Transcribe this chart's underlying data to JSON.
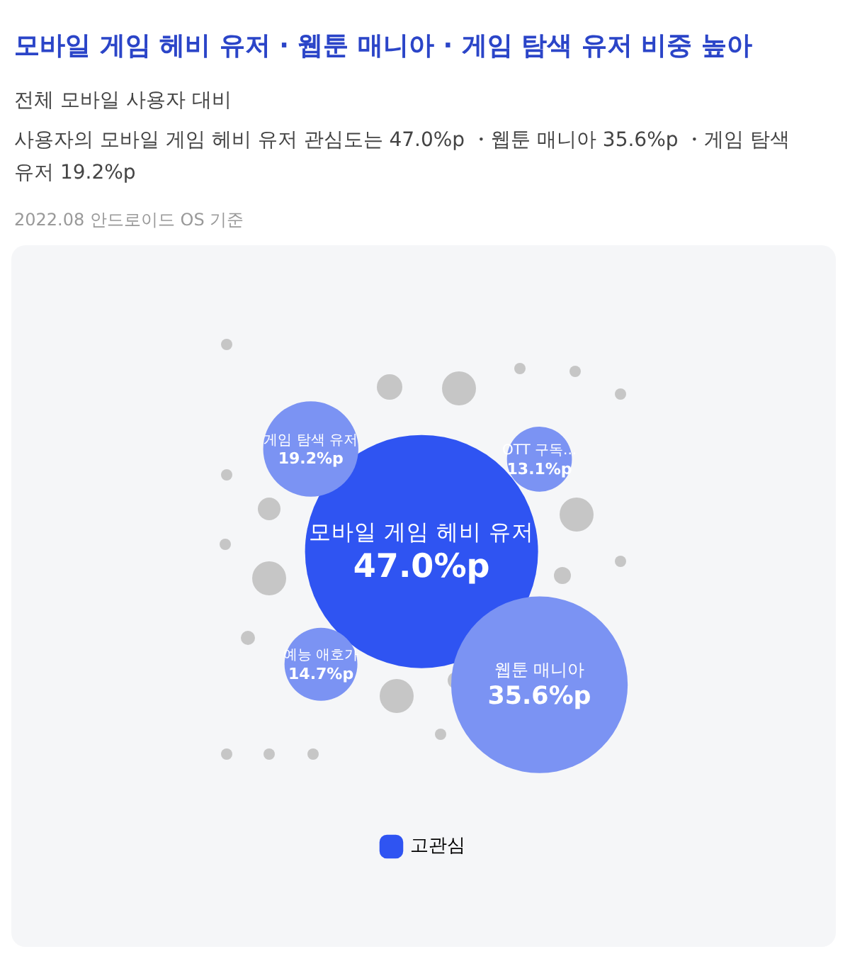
{
  "chart_data": {
    "type": "other",
    "title": "모바일 게임 헤비 유저 · 웹툰 매니아 · 게임 탐색 유저 비중 높아",
    "subtitle": "전체 모바일 사용자 대비",
    "annotations": [
      "사용자의 모바일 게임 헤비 유저 관심도는 47.0%p ・웹툰 매니아 35.6%p ・게임 탐색 유저 19.2%p",
      "2022.08 안드로이드 OS 기준"
    ],
    "categories": [
      "모바일 게임 헤비 유저",
      "웹툰 매니아",
      "게임 탐색 유저",
      "OTT 구독...",
      "예능 애호가"
    ],
    "series": [
      {
        "name": "고관심",
        "color": "#2f54f2",
        "values": [
          47.0,
          35.6,
          19.2,
          13.1,
          14.7
        ],
        "colors": [
          "#2f54f2",
          "#7b93f3",
          "#7b93f3",
          "#7b93f3",
          "#7b93f3"
        ],
        "value_labels": [
          "47.0%p",
          "35.6%p",
          "19.2%p",
          "13.1%p",
          "14.7%p"
        ]
      }
    ],
    "legend": "bottom"
  }
}
